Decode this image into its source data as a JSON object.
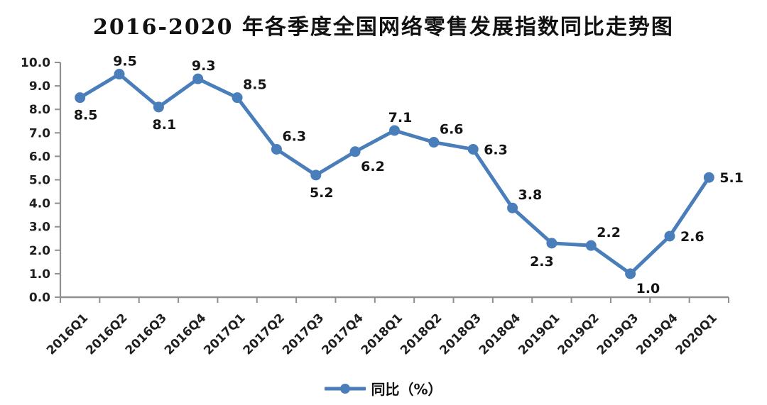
{
  "chart_data": {
    "type": "line",
    "title": "2016-2020 年各季度全国网络零售发展指数同比走势图",
    "categories": [
      "2016Q1",
      "2016Q2",
      "2016Q3",
      "2016Q4",
      "2017Q1",
      "2017Q2",
      "2017Q3",
      "2017Q4",
      "2018Q1",
      "2018Q2",
      "2018Q3",
      "2018Q4",
      "2019Q1",
      "2019Q2",
      "2019Q3",
      "2019Q4",
      "2020Q1"
    ],
    "series": [
      {
        "name": "同比（%）",
        "color": "#4a7ebb",
        "marker": "circle",
        "values": [
          8.5,
          9.5,
          8.1,
          9.3,
          8.5,
          6.3,
          5.2,
          6.2,
          7.1,
          6.6,
          6.3,
          3.8,
          2.3,
          2.2,
          1.0,
          2.6,
          5.1
        ],
        "data_label_placements": [
          "below",
          "above",
          "below",
          "above",
          "above-right",
          "above-right",
          "below",
          "below-right",
          "above",
          "above-right",
          "right",
          "above-right",
          "below-left",
          "above-right",
          "below-right",
          "right",
          "right"
        ]
      }
    ],
    "xlabel": "",
    "ylabel": "",
    "ylim": [
      0,
      10
    ],
    "ytick_step": 1,
    "ytick_decimals": 1,
    "x_label_rotation": -45,
    "grid": false,
    "show_data_labels": true,
    "legend_position": "bottom"
  },
  "legend": {
    "label": "同比（%）"
  },
  "colors": {
    "line": "#4a7ebb",
    "axis": "#8f8f8f",
    "tick_label": "#1f1f1f",
    "data_label": "#141414",
    "background": "#ffffff"
  }
}
